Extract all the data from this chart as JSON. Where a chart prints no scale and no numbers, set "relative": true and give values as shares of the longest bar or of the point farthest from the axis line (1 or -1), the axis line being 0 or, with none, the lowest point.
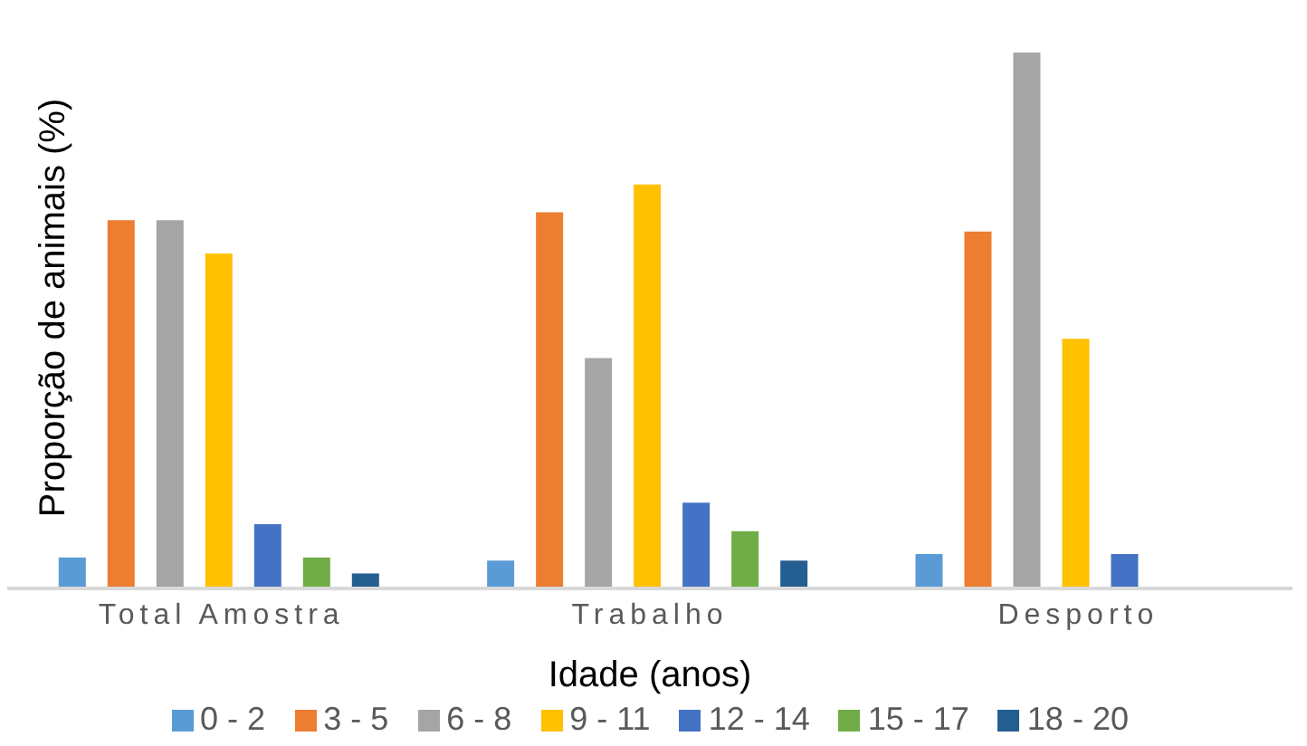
{
  "chart_data": {
    "type": "bar",
    "relative": true,
    "xlabel": "Idade (anos)",
    "ylabel": "Proporção de animais (%)",
    "categories": [
      "Total Amostra",
      "Trabalho",
      "Desporto"
    ],
    "legend": "bottom",
    "grid": false,
    "series": [
      {
        "name": "0 - 2",
        "color": "#5b9bd5",
        "values": [
          0.058,
          0.052,
          0.064
        ]
      },
      {
        "name": "3 - 5",
        "color": "#ed7d31",
        "values": [
          0.687,
          0.702,
          0.666
        ]
      },
      {
        "name": "6 - 8",
        "color": "#a5a5a5",
        "values": [
          0.687,
          0.43,
          1
        ]
      },
      {
        "name": "9 - 11",
        "color": "#ffc000",
        "values": [
          0.625,
          0.754,
          0.466
        ]
      },
      {
        "name": "12 - 14",
        "color": "#4472c4",
        "values": [
          0.12,
          0.16,
          0.064
        ]
      },
      {
        "name": "15 - 17",
        "color": "#70ad47",
        "values": [
          0.058,
          0.107,
          null
        ]
      },
      {
        "name": "18 - 20",
        "color": "#255e91",
        "values": [
          0.028,
          0.052,
          null
        ]
      }
    ]
  }
}
